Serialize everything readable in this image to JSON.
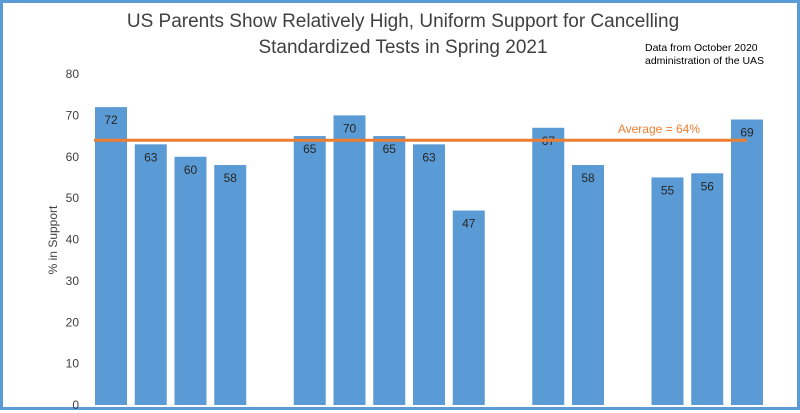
{
  "chart_data": {
    "type": "bar",
    "title_lines": [
      "US Parents Show Relatively High, Uniform Support for Cancelling",
      "Standardized Tests in Spring 2021"
    ],
    "note_lines": [
      "Data from October 2020",
      "administration of the UAS"
    ],
    "ylabel": "% in Support",
    "ylim": [
      0,
      80
    ],
    "yticks": [
      0,
      10,
      20,
      30,
      40,
      50,
      60,
      70,
      80
    ],
    "grid": false,
    "bar_color": "#5b9bd5",
    "groups": [
      {
        "values": [
          72,
          63,
          60,
          58
        ]
      },
      {
        "values": [
          65,
          70,
          65,
          63,
          47
        ]
      },
      {
        "values": [
          67,
          58
        ]
      },
      {
        "values": [
          55,
          56,
          69
        ]
      }
    ],
    "average": {
      "value": 64,
      "label": "Average = 64%",
      "color": "#ed7d31"
    }
  }
}
